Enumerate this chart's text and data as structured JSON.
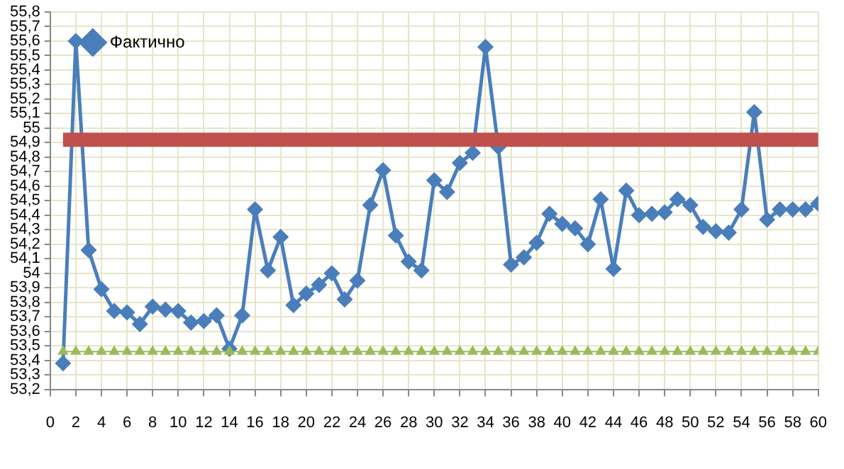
{
  "chart_data": {
    "type": "line",
    "x": [
      1,
      2,
      3,
      4,
      5,
      6,
      7,
      8,
      9,
      10,
      11,
      12,
      13,
      14,
      15,
      16,
      17,
      18,
      19,
      20,
      21,
      22,
      23,
      24,
      25,
      26,
      27,
      28,
      29,
      30,
      31,
      32,
      33,
      34,
      35,
      36,
      37,
      38,
      39,
      40,
      41,
      42,
      43,
      44,
      45,
      46,
      47,
      48,
      49,
      50,
      51,
      52,
      53,
      54,
      55,
      56,
      57,
      58,
      59,
      60
    ],
    "series": [
      {
        "name": "Фактично",
        "color": "#4a7ebb",
        "marker": "diamond",
        "values": [
          53.38,
          55.6,
          54.16,
          53.89,
          53.74,
          53.73,
          53.65,
          53.77,
          53.75,
          53.74,
          53.66,
          53.67,
          53.71,
          53.48,
          53.71,
          54.44,
          54.02,
          54.25,
          53.78,
          53.86,
          53.92,
          54.0,
          53.82,
          53.95,
          54.47,
          54.71,
          54.26,
          54.08,
          54.02,
          54.64,
          54.56,
          54.76,
          54.83,
          55.56,
          54.87,
          54.06,
          54.11,
          54.21,
          54.41,
          54.34,
          54.31,
          54.2,
          54.51,
          54.03,
          54.57,
          54.4,
          54.41,
          54.42,
          54.51,
          54.47,
          54.32,
          54.29,
          54.28,
          54.44,
          55.11,
          54.37,
          54.44,
          54.44,
          54.44,
          54.48
        ]
      },
      {
        "color": "#c0504d",
        "marker": "none",
        "values": [
          54.92,
          54.92,
          54.92,
          54.92,
          54.92,
          54.92,
          54.92,
          54.92,
          54.92,
          54.92,
          54.92,
          54.92,
          54.92,
          54.92,
          54.92,
          54.92,
          54.92,
          54.92,
          54.92,
          54.92,
          54.92,
          54.92,
          54.92,
          54.92,
          54.92,
          54.92,
          54.92,
          54.92,
          54.92,
          54.92,
          54.92,
          54.92,
          54.92,
          54.92,
          54.92,
          54.92,
          54.92,
          54.92,
          54.92,
          54.92,
          54.92,
          54.92,
          54.92,
          54.92,
          54.92,
          54.92,
          54.92,
          54.92,
          54.92,
          54.92,
          54.92,
          54.92,
          54.92,
          54.92,
          54.92,
          54.92,
          54.92,
          54.92,
          54.92,
          54.92
        ]
      },
      {
        "color": "#9bbb59",
        "marker": "triangle",
        "values": [
          53.46,
          53.46,
          53.46,
          53.46,
          53.46,
          53.46,
          53.46,
          53.46,
          53.46,
          53.46,
          53.46,
          53.46,
          53.46,
          53.46,
          53.46,
          53.46,
          53.46,
          53.46,
          53.46,
          53.46,
          53.46,
          53.46,
          53.46,
          53.46,
          53.46,
          53.46,
          53.46,
          53.46,
          53.46,
          53.46,
          53.46,
          53.46,
          53.46,
          53.46,
          53.46,
          53.46,
          53.46,
          53.46,
          53.46,
          53.46,
          53.46,
          53.46,
          53.46,
          53.46,
          53.46,
          53.46,
          53.46,
          53.46,
          53.46,
          53.46,
          53.46,
          53.46,
          53.46,
          53.46,
          53.46,
          53.46,
          53.46,
          53.46,
          53.46,
          53.46
        ]
      }
    ],
    "xlim": [
      0,
      60
    ],
    "xticks": [
      0,
      2,
      4,
      6,
      8,
      10,
      12,
      14,
      16,
      18,
      20,
      22,
      24,
      26,
      28,
      30,
      32,
      34,
      36,
      38,
      40,
      42,
      44,
      46,
      48,
      50,
      52,
      54,
      56,
      58,
      60
    ],
    "ylim": [
      53.2,
      55.8
    ],
    "yticks": [
      {
        "value": 53.2,
        "label": "53,2"
      },
      {
        "value": 53.3,
        "label": "53,3"
      },
      {
        "value": 53.4,
        "label": "53,4"
      },
      {
        "value": 53.5,
        "label": "53,5"
      },
      {
        "value": 53.6,
        "label": "53,6"
      },
      {
        "value": 53.7,
        "label": "53,7"
      },
      {
        "value": 53.8,
        "label": "53,8"
      },
      {
        "value": 53.9,
        "label": "53,9"
      },
      {
        "value": 54,
        "label": "54"
      },
      {
        "value": 54.1,
        "label": "54,1"
      },
      {
        "value": 54.2,
        "label": "54,2"
      },
      {
        "value": 54.3,
        "label": "54,3"
      },
      {
        "value": 54.4,
        "label": "54,4"
      },
      {
        "value": 54.5,
        "label": "54,5"
      },
      {
        "value": 54.6,
        "label": "54,6"
      },
      {
        "value": 54.7,
        "label": "54,7"
      },
      {
        "value": 54.8,
        "label": "54,8"
      },
      {
        "value": 54.9,
        "label": "54,9"
      },
      {
        "value": 55,
        "label": "55"
      },
      {
        "value": 55.1,
        "label": "55,1"
      },
      {
        "value": 55.2,
        "label": "55,2"
      },
      {
        "value": 55.3,
        "label": "55,3"
      },
      {
        "value": 55.4,
        "label": "55,4"
      },
      {
        "value": 55.5,
        "label": "55,5"
      },
      {
        "value": 55.6,
        "label": "55,6"
      },
      {
        "value": 55.7,
        "label": "55,7"
      },
      {
        "value": 55.8,
        "label": "55,8"
      }
    ],
    "grid": true,
    "legend": "top left",
    "line_style": "solid"
  }
}
